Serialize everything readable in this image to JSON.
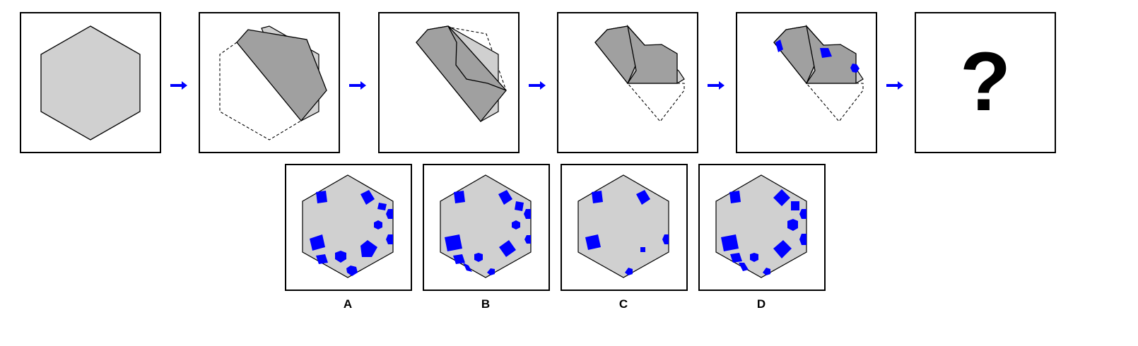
{
  "puzzle": {
    "question_mark": "?",
    "sequence_steps": 6,
    "colors": {
      "paper": "#d0d0d0",
      "folded": "#a0a0a0",
      "hole": "#0000ff",
      "arrow": "#0000ff",
      "outline": "#000000"
    }
  },
  "options": [
    {
      "label": "A"
    },
    {
      "label": "B"
    },
    {
      "label": "C"
    },
    {
      "label": "D"
    }
  ]
}
